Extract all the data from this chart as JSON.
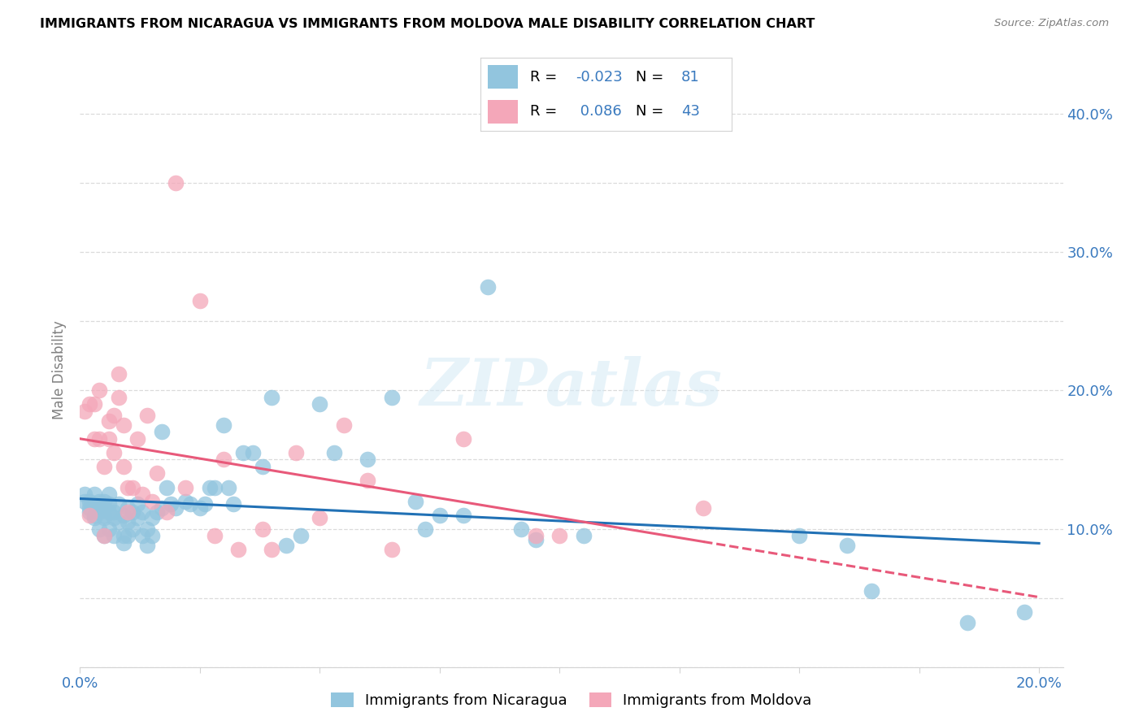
{
  "title": "IMMIGRANTS FROM NICARAGUA VS IMMIGRANTS FROM MOLDOVA MALE DISABILITY CORRELATION CHART",
  "source": "Source: ZipAtlas.com",
  "ylabel": "Male Disability",
  "xlim": [
    0.0,
    0.205
  ],
  "ylim": [
    0.0,
    0.43
  ],
  "xticks": [
    0.0,
    0.025,
    0.05,
    0.075,
    0.1,
    0.125,
    0.15,
    0.175,
    0.2
  ],
  "yticks": [
    0.0,
    0.05,
    0.1,
    0.15,
    0.2,
    0.25,
    0.3,
    0.35,
    0.4
  ],
  "nicaragua_color": "#92c5de",
  "nicaragua_edge_color": "#5ba3cc",
  "moldova_color": "#f4a7b9",
  "moldova_edge_color": "#e07090",
  "nicaragua_R": -0.023,
  "nicaragua_N": 81,
  "moldova_R": 0.086,
  "moldova_N": 43,
  "nicaragua_line_color": "#2171b5",
  "moldova_line_color": "#e8597a",
  "watermark": "ZIPatlas",
  "legend_R_color": "#3a7abf",
  "nicaragua_x": [
    0.001,
    0.001,
    0.002,
    0.002,
    0.002,
    0.003,
    0.003,
    0.003,
    0.003,
    0.004,
    0.004,
    0.004,
    0.004,
    0.005,
    0.005,
    0.005,
    0.005,
    0.005,
    0.006,
    0.006,
    0.006,
    0.006,
    0.007,
    0.007,
    0.007,
    0.008,
    0.008,
    0.009,
    0.009,
    0.009,
    0.01,
    0.01,
    0.01,
    0.011,
    0.011,
    0.012,
    0.012,
    0.013,
    0.013,
    0.014,
    0.014,
    0.015,
    0.015,
    0.016,
    0.017,
    0.017,
    0.018,
    0.019,
    0.02,
    0.022,
    0.023,
    0.025,
    0.026,
    0.027,
    0.028,
    0.03,
    0.031,
    0.032,
    0.034,
    0.036,
    0.038,
    0.04,
    0.043,
    0.046,
    0.05,
    0.053,
    0.06,
    0.065,
    0.07,
    0.072,
    0.075,
    0.08,
    0.085,
    0.092,
    0.095,
    0.105,
    0.15,
    0.16,
    0.165,
    0.185,
    0.197
  ],
  "nicaragua_y": [
    0.12,
    0.125,
    0.115,
    0.12,
    0.112,
    0.118,
    0.11,
    0.125,
    0.108,
    0.115,
    0.12,
    0.1,
    0.112,
    0.115,
    0.12,
    0.11,
    0.095,
    0.108,
    0.118,
    0.112,
    0.1,
    0.125,
    0.112,
    0.108,
    0.095,
    0.118,
    0.105,
    0.095,
    0.11,
    0.09,
    0.105,
    0.115,
    0.095,
    0.1,
    0.112,
    0.118,
    0.108,
    0.095,
    0.112,
    0.1,
    0.088,
    0.108,
    0.095,
    0.112,
    0.17,
    0.115,
    0.13,
    0.118,
    0.115,
    0.12,
    0.118,
    0.115,
    0.118,
    0.13,
    0.13,
    0.175,
    0.13,
    0.118,
    0.155,
    0.155,
    0.145,
    0.195,
    0.088,
    0.095,
    0.19,
    0.155,
    0.15,
    0.195,
    0.12,
    0.1,
    0.11,
    0.11,
    0.275,
    0.1,
    0.092,
    0.095,
    0.095,
    0.088,
    0.055,
    0.032,
    0.04
  ],
  "moldova_x": [
    0.001,
    0.002,
    0.002,
    0.003,
    0.003,
    0.004,
    0.004,
    0.005,
    0.005,
    0.006,
    0.006,
    0.007,
    0.007,
    0.008,
    0.008,
    0.009,
    0.009,
    0.01,
    0.01,
    0.011,
    0.012,
    0.013,
    0.014,
    0.015,
    0.016,
    0.018,
    0.02,
    0.022,
    0.025,
    0.028,
    0.03,
    0.033,
    0.038,
    0.04,
    0.045,
    0.05,
    0.055,
    0.06,
    0.065,
    0.08,
    0.095,
    0.1,
    0.13
  ],
  "moldova_y": [
    0.185,
    0.11,
    0.19,
    0.19,
    0.165,
    0.2,
    0.165,
    0.145,
    0.095,
    0.178,
    0.165,
    0.182,
    0.155,
    0.212,
    0.195,
    0.175,
    0.145,
    0.13,
    0.112,
    0.13,
    0.165,
    0.125,
    0.182,
    0.12,
    0.14,
    0.112,
    0.35,
    0.13,
    0.265,
    0.095,
    0.15,
    0.085,
    0.1,
    0.085,
    0.155,
    0.108,
    0.175,
    0.135,
    0.085,
    0.165,
    0.095,
    0.095,
    0.115
  ]
}
